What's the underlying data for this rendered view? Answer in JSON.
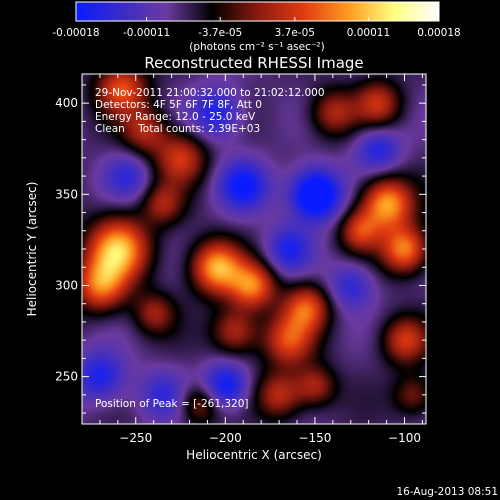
{
  "colorbar": {
    "tick_labels": [
      "-0.00018",
      "-0.00011",
      "-3.7e-05",
      "3.7e-05",
      "0.00011",
      "0.00018"
    ],
    "tick_values": [
      -0.00018,
      -0.00011,
      -3.7e-05,
      3.7e-05,
      0.00011,
      0.00018
    ],
    "range": [
      -0.00018,
      0.00018
    ],
    "unit_label": "(photons cm⁻² s⁻¹ asec⁻²)",
    "stops": [
      "#0a1cff",
      "#3a2cc8",
      "#6a3aa0",
      "#000000",
      "#8a1a10",
      "#e03a10",
      "#ff9a20",
      "#ffff80",
      "#ffffff"
    ]
  },
  "chart_data": {
    "type": "heatmap",
    "title": "Reconstructed RHESSI Image",
    "xlabel": "Heliocentric X (arcsec)",
    "ylabel": "Heliocentric Y (arcsec)",
    "xlim": [
      -280,
      -88
    ],
    "ylim": [
      224,
      416
    ],
    "x_ticks": [
      -250,
      -200,
      -150,
      -100
    ],
    "x_tick_labels": [
      "−250",
      "−200",
      "−150",
      "−100"
    ],
    "y_ticks": [
      250,
      300,
      350,
      400
    ],
    "y_tick_labels": [
      "250",
      "300",
      "350",
      "400"
    ],
    "annotations": [
      "29-Nov-2011 21:00:32.000 to 21:02:12.000",
      "Detectors: 4F 5F 6F 7F 8F, Att 0",
      "Energy Range: 12.0 - 25.0 keV",
      "Clean    Total counts: 2.39E+03"
    ],
    "peak_label": "Position of Peak = [-261,320]",
    "peak": [
      -261,
      320
    ],
    "blobs": [
      {
        "x": -260,
        "y": 320,
        "v": 1.0,
        "s": 12
      },
      {
        "x": -270,
        "y": 300,
        "v": 0.75,
        "s": 10
      },
      {
        "x": -258,
        "y": 408,
        "v": 0.7,
        "s": 10
      },
      {
        "x": -245,
        "y": 385,
        "v": 0.5,
        "s": 9
      },
      {
        "x": -225,
        "y": 370,
        "v": 0.6,
        "s": 10
      },
      {
        "x": -235,
        "y": 345,
        "v": 0.45,
        "s": 8
      },
      {
        "x": -205,
        "y": 310,
        "v": 0.95,
        "s": 10
      },
      {
        "x": -185,
        "y": 300,
        "v": 0.8,
        "s": 9
      },
      {
        "x": -195,
        "y": 275,
        "v": 0.55,
        "s": 9
      },
      {
        "x": -165,
        "y": 270,
        "v": 0.65,
        "s": 10
      },
      {
        "x": -155,
        "y": 288,
        "v": 0.7,
        "s": 9
      },
      {
        "x": -170,
        "y": 240,
        "v": 0.55,
        "s": 9
      },
      {
        "x": -150,
        "y": 245,
        "v": 0.5,
        "s": 8
      },
      {
        "x": -110,
        "y": 345,
        "v": 0.95,
        "s": 10
      },
      {
        "x": -100,
        "y": 320,
        "v": 0.85,
        "s": 9
      },
      {
        "x": -125,
        "y": 330,
        "v": 0.6,
        "s": 8
      },
      {
        "x": -100,
        "y": 270,
        "v": 0.6,
        "s": 9
      },
      {
        "x": -140,
        "y": 395,
        "v": 0.5,
        "s": 9
      },
      {
        "x": -115,
        "y": 400,
        "v": 0.55,
        "s": 9
      },
      {
        "x": -240,
        "y": 285,
        "v": 0.45,
        "s": 8
      },
      {
        "x": -95,
        "y": 240,
        "v": 0.4,
        "s": 8
      },
      {
        "x": -215,
        "y": 235,
        "v": 0.45,
        "s": 8
      },
      {
        "x": -150,
        "y": 350,
        "v": -0.9,
        "s": 10
      },
      {
        "x": -190,
        "y": 355,
        "v": -0.55,
        "s": 10
      },
      {
        "x": -205,
        "y": 395,
        "v": -0.5,
        "s": 10
      },
      {
        "x": -270,
        "y": 250,
        "v": -0.5,
        "s": 10
      },
      {
        "x": -200,
        "y": 245,
        "v": -0.6,
        "s": 9
      },
      {
        "x": -165,
        "y": 320,
        "v": -0.45,
        "s": 9
      },
      {
        "x": -130,
        "y": 300,
        "v": -0.4,
        "s": 9
      },
      {
        "x": -115,
        "y": 375,
        "v": -0.45,
        "s": 9
      },
      {
        "x": -235,
        "y": 240,
        "v": -0.35,
        "s": 10
      },
      {
        "x": -255,
        "y": 360,
        "v": -0.35,
        "s": 9
      }
    ]
  },
  "footer": {
    "timestamp": "16-Aug-2013 08:51"
  }
}
